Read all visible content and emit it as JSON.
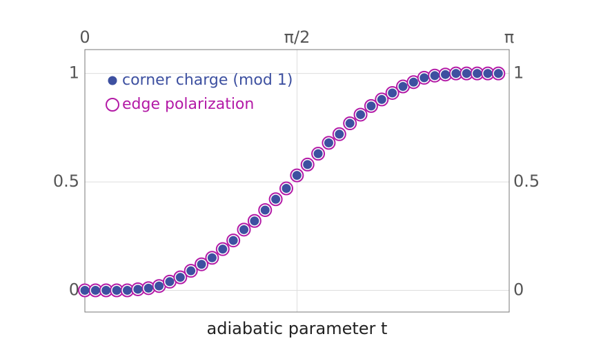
{
  "chart_data": {
    "type": "scatter",
    "x_label": "adiabatic parameter t",
    "x": [
      0,
      0.0785,
      0.157,
      0.2355,
      0.314,
      0.3925,
      0.471,
      0.5495,
      0.628,
      0.7065,
      0.785,
      0.8635,
      0.942,
      1.0205,
      1.099,
      1.1775,
      1.256,
      1.3345,
      1.413,
      1.4915,
      1.57,
      1.6485,
      1.727,
      1.8055,
      1.884,
      1.9625,
      2.041,
      2.1195,
      2.198,
      2.2765,
      2.355,
      2.4335,
      2.512,
      2.5905,
      2.669,
      2.7475,
      2.826,
      2.9045,
      2.983,
      3.0615
    ],
    "series": [
      {
        "name": "corner charge (mod 1)",
        "color": "#3d50a0",
        "marker": "filled",
        "values": [
          0,
          0,
          0,
          0,
          0,
          0.005,
          0.01,
          0.02,
          0.04,
          0.06,
          0.09,
          0.12,
          0.15,
          0.19,
          0.23,
          0.28,
          0.32,
          0.37,
          0.42,
          0.47,
          0.53,
          0.58,
          0.63,
          0.68,
          0.72,
          0.77,
          0.81,
          0.85,
          0.88,
          0.91,
          0.94,
          0.96,
          0.98,
          0.99,
          0.995,
          1,
          1,
          1,
          1,
          1
        ]
      },
      {
        "name": "edge polarization",
        "color": "#b31aa6",
        "marker": "open",
        "values": [
          0,
          0,
          0,
          0,
          0,
          0.005,
          0.01,
          0.02,
          0.04,
          0.06,
          0.09,
          0.12,
          0.15,
          0.19,
          0.23,
          0.28,
          0.32,
          0.37,
          0.42,
          0.47,
          0.53,
          0.58,
          0.63,
          0.68,
          0.72,
          0.77,
          0.81,
          0.85,
          0.88,
          0.91,
          0.94,
          0.96,
          0.98,
          0.99,
          0.995,
          1,
          1,
          1,
          1,
          1
        ]
      }
    ],
    "xlim": [
      0,
      3.1416
    ],
    "xticks": [
      0,
      {
        "value": 1.5708,
        "label": "π/2"
      },
      {
        "value": 3.1416,
        "label": "π"
      }
    ],
    "ylim": [
      -0.1,
      1.11
    ],
    "yticks": [
      0,
      0.5,
      1
    ],
    "grid": true,
    "legend": "upper left"
  }
}
